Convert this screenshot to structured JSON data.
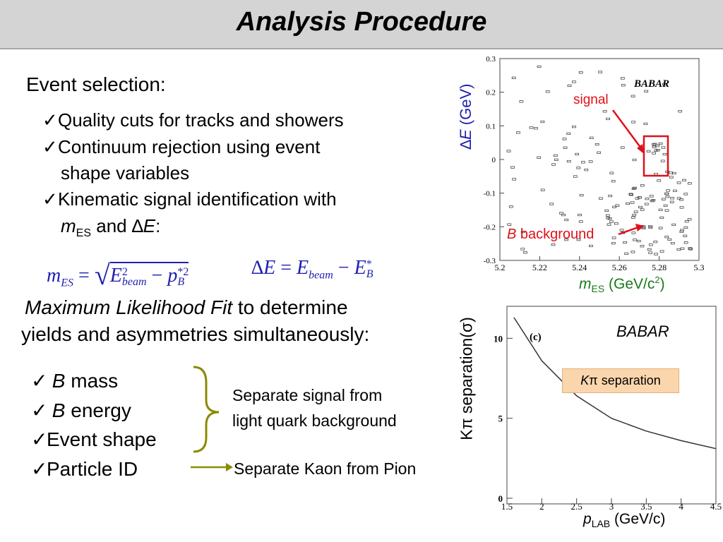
{
  "title": "Analysis Procedure",
  "event_selection": {
    "heading": "Event selection:",
    "items": [
      "Quality cuts for tracks and showers",
      "Continuum rejection using event",
      "shape variables",
      "Kinematic signal identification with"
    ],
    "last_line": {
      "m": "m",
      "sub": "ES",
      "and": " and ",
      "delta": "∆",
      "E": "E",
      "colon": ":"
    }
  },
  "formulas": {
    "mes": {
      "m": "m",
      "sub": "ES",
      "eq": " = ",
      "E": "E",
      "sup2": "2",
      "beam": "beam",
      "minus": " − ",
      "p": "p",
      "supp": "*2",
      "subp": "B"
    },
    "de": {
      "delta": "∆E",
      "eq": " = ",
      "E": "E",
      "beam": "beam",
      "minus": " − ",
      "EB": "E",
      "subB": "B",
      "star": "*"
    }
  },
  "ml": {
    "line1_italic": "Maximum Likelihood Fit",
    "line1_rest": " to determine",
    "line2": "yields and asymmetries simultaneously:"
  },
  "fit_vars": [
    {
      "italic": "B",
      "text": " mass"
    },
    {
      "italic": "B",
      "text": " energy"
    },
    {
      "italic": "",
      "text": "Event shape"
    },
    {
      "italic": "",
      "text": "Particle ID"
    }
  ],
  "notes": {
    "separate_signal_1": "Separate signal from",
    "separate_signal_2": "light quark background",
    "separate_kaon": "Separate Kaon from Pion"
  },
  "scatter": {
    "ylabel_delta": "∆",
    "ylabel_E": "E",
    "ylabel_unit": " (GeV)",
    "y_ticks": [
      "0.3",
      "0.2",
      "0.1",
      "0",
      "-0.1",
      "-0.2",
      "-0.3"
    ],
    "x_ticks": [
      "5.2",
      "5.22",
      "5.24",
      "5.26",
      "5.28",
      "5.3"
    ],
    "babar_logo": "BABAR",
    "signal_label": "signal",
    "bkg_B": "B",
    "bkg_rest": " background",
    "xlabel_m": "m",
    "xlabel_sub": "ES",
    "xlabel_unit": " (GeV/c",
    "xlabel_sup": "2",
    "xlabel_close": ")"
  },
  "sep_plot": {
    "panel": "(c)",
    "babar": "BABAR",
    "box_K": "K",
    "box_pi": "π",
    "box_rest": " separation",
    "ylabel": "Kπ separation(σ)",
    "y_ticks": [
      "0",
      "5",
      "10"
    ],
    "x_ticks": [
      "1.5",
      "2",
      "2.5",
      "3",
      "3.5",
      "4",
      "4.5"
    ],
    "xlabel_p": "p",
    "xlabel_sub": "LAB",
    "xlabel_unit": " (GeV/c)"
  },
  "chart_data": [
    {
      "type": "scatter",
      "xlabel": "mES (GeV/c2)",
      "ylabel": "∆E (GeV)",
      "xlim": [
        5.2,
        5.3
      ],
      "ylim": [
        -0.3,
        0.3
      ],
      "annotations": [
        "signal",
        "B background"
      ]
    },
    {
      "type": "line",
      "xlabel": "pLAB (GeV/c)",
      "ylabel": "Kπ separation(σ)",
      "xlim": [
        1.5,
        4.5
      ],
      "ylim": [
        0,
        12
      ],
      "legend": "Kπ separation",
      "series": [
        {
          "x": [
            1.6,
            2.0,
            2.5,
            3.0,
            3.5,
            4.0,
            4.5
          ],
          "y": [
            11.3,
            8.6,
            6.4,
            5.0,
            4.2,
            3.6,
            3.1
          ]
        }
      ]
    }
  ],
  "colors": {
    "title_bar": "#d4d4d4",
    "math": "#1f1fb0",
    "arrow_red": "#e0101a",
    "brace": "#8b8b00",
    "box_fill": "#fbd6ad"
  }
}
